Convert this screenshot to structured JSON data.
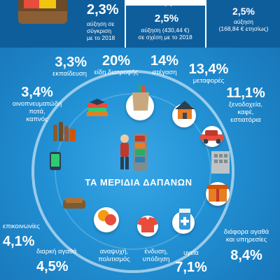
{
  "top": {
    "left_pct": "2,3%",
    "left_desc": [
      "αύξηση σε",
      "σύγκριση",
      "με το 2018"
    ],
    "mid_header": "τον μήνα",
    "mid_pct": "2,5%",
    "mid_desc": [
      "αύξηση (430,44 €)",
      "σε σχέση με το 2018"
    ],
    "right_pct": "2,5%",
    "right_desc": [
      "αύξηση",
      "(168,84 € ετησίως)"
    ]
  },
  "title": "ΤΑ ΜΕΡΙΔΙΑ ΔΑΠΑΝΩΝ",
  "categories": [
    {
      "pct": "3,3%",
      "label": [
        "εκπαίδευση"
      ]
    },
    {
      "pct": "20%",
      "label": [
        "είδη διατροφής"
      ]
    },
    {
      "pct": "14%",
      "label": [
        "στέγαση"
      ]
    },
    {
      "pct": "13,4%",
      "label": [
        "μεταφορές"
      ]
    },
    {
      "pct": "11,1%",
      "label": [
        "ξενοδοχεία,",
        "καφέ,",
        "εστιατόρια"
      ]
    },
    {
      "pct": "3,4%",
      "label": [
        "οινοπνευματώδη",
        "ποτά,",
        "καπνός"
      ]
    },
    {
      "pct": "4,1%",
      "label": [
        "επικοινωνίες"
      ]
    },
    {
      "pct": "4,5%",
      "label": [
        "διαρκή αγαθά"
      ]
    },
    {
      "pct": "",
      "label": [
        "αναψυχή,",
        "πολιτισμός"
      ]
    },
    {
      "pct": "",
      "label": [
        "ένδυση,",
        "υπόδηση"
      ]
    },
    {
      "pct": "7,1%",
      "label": [
        "υγεία"
      ]
    },
    {
      "pct": "8,4%",
      "label": [
        "διάφορα αγαθά",
        "και υπηρεσίες"
      ]
    }
  ],
  "colors": {
    "background": "#1c86c9",
    "band": "#0f5e9c",
    "text": "#ffffff"
  },
  "icons": [
    "wallet-icon",
    "books-icon",
    "grocery-bag-icon",
    "house-icon",
    "car-icon",
    "hotel-icon",
    "drinks-icon",
    "smartphone-icon",
    "sofa-icon",
    "theater-icon",
    "clothes-icon",
    "medicine-icon",
    "gift-box-icon",
    "shopper-icon"
  ]
}
